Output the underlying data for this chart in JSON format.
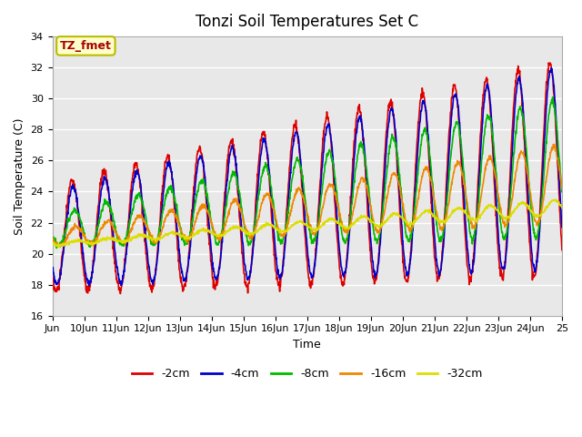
{
  "title": "Tonzi Soil Temperatures Set C",
  "xlabel": "Time",
  "ylabel": "Soil Temperature (C)",
  "ylim": [
    16,
    34
  ],
  "yticks": [
    16,
    18,
    20,
    22,
    24,
    26,
    28,
    30,
    32,
    34
  ],
  "xlim_days": [
    9,
    25
  ],
  "xtick_labels": [
    "Jun",
    "10Jun",
    "11Jun",
    "12Jun",
    "13Jun",
    "14Jun",
    "15Jun",
    "16Jun",
    "17Jun",
    "18Jun",
    "19Jun",
    "20Jun",
    "21Jun",
    "22Jun",
    "23Jun",
    "24Jun",
    "25"
  ],
  "xtick_positions": [
    9,
    10,
    11,
    12,
    13,
    14,
    15,
    16,
    17,
    18,
    19,
    20,
    21,
    22,
    23,
    24,
    25
  ],
  "annotation_text": "TZ_fmet",
  "annotation_bg": "#ffffcc",
  "annotation_border": "#bbbb00",
  "annotation_text_color": "#aa0000",
  "series_colors": {
    "-2cm": "#dd0000",
    "-4cm": "#0000cc",
    "-8cm": "#00bb00",
    "-16cm": "#ee8800",
    "-32cm": "#dddd00"
  },
  "background_color": "#ffffff",
  "plot_bg_color": "#e8e8e8",
  "grid_color": "#ffffff",
  "linewidth": 1.2,
  "n_points_per_day": 96,
  "title_fontsize": 12,
  "axis_fontsize": 9,
  "tick_fontsize": 8
}
